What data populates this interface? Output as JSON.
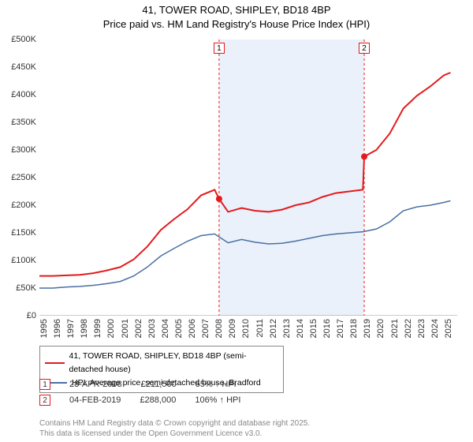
{
  "title_line1": "41, TOWER ROAD, SHIPLEY, BD18 4BP",
  "title_line2": "Price paid vs. HM Land Registry's House Price Index (HPI)",
  "chart": {
    "type": "line",
    "x_min": 1995,
    "x_max": 2026,
    "y_min": 0,
    "y_max": 500000,
    "y_ticks": [
      0,
      50000,
      100000,
      150000,
      200000,
      250000,
      300000,
      350000,
      400000,
      450000,
      500000
    ],
    "y_tick_labels": [
      "£0",
      "£50K",
      "£100K",
      "£150K",
      "£200K",
      "£250K",
      "£300K",
      "£350K",
      "£400K",
      "£450K",
      "£500K"
    ],
    "x_ticks": [
      1995,
      1996,
      1997,
      1998,
      1999,
      2000,
      2001,
      2002,
      2003,
      2004,
      2005,
      2006,
      2007,
      2008,
      2009,
      2010,
      2011,
      2012,
      2013,
      2014,
      2015,
      2016,
      2017,
      2018,
      2019,
      2020,
      2021,
      2022,
      2023,
      2024,
      2025
    ],
    "background_color": "#ffffff",
    "shade_color": "#eaf1fa",
    "grid_color": "#cccccc",
    "shade_x_from": 2008.33,
    "shade_x_to": 2019.1,
    "series": [
      {
        "name": "property",
        "color": "#e41a1c",
        "width": 2,
        "points": [
          [
            1995,
            72000
          ],
          [
            1996,
            72000
          ],
          [
            1997,
            73000
          ],
          [
            1998,
            74000
          ],
          [
            1999,
            77000
          ],
          [
            2000,
            82000
          ],
          [
            2001,
            88000
          ],
          [
            2002,
            102000
          ],
          [
            2003,
            125000
          ],
          [
            2004,
            155000
          ],
          [
            2005,
            175000
          ],
          [
            2006,
            193000
          ],
          [
            2007,
            218000
          ],
          [
            2008,
            228000
          ],
          [
            2008.33,
            211500
          ],
          [
            2009,
            188000
          ],
          [
            2010,
            195000
          ],
          [
            2011,
            190000
          ],
          [
            2012,
            188000
          ],
          [
            2013,
            192000
          ],
          [
            2014,
            200000
          ],
          [
            2015,
            205000
          ],
          [
            2016,
            215000
          ],
          [
            2017,
            222000
          ],
          [
            2018,
            225000
          ],
          [
            2019,
            228000
          ],
          [
            2019.1,
            288000
          ],
          [
            2020,
            300000
          ],
          [
            2021,
            330000
          ],
          [
            2022,
            375000
          ],
          [
            2023,
            398000
          ],
          [
            2024,
            415000
          ],
          [
            2025,
            435000
          ],
          [
            2025.5,
            440000
          ]
        ]
      },
      {
        "name": "hpi",
        "color": "#4a6fa5",
        "width": 1.5,
        "points": [
          [
            1995,
            50000
          ],
          [
            1996,
            50000
          ],
          [
            1997,
            52000
          ],
          [
            1998,
            53000
          ],
          [
            1999,
            55000
          ],
          [
            2000,
            58000
          ],
          [
            2001,
            62000
          ],
          [
            2002,
            72000
          ],
          [
            2003,
            88000
          ],
          [
            2004,
            108000
          ],
          [
            2005,
            122000
          ],
          [
            2006,
            135000
          ],
          [
            2007,
            145000
          ],
          [
            2008,
            148000
          ],
          [
            2009,
            132000
          ],
          [
            2010,
            138000
          ],
          [
            2011,
            133000
          ],
          [
            2012,
            130000
          ],
          [
            2013,
            131000
          ],
          [
            2014,
            135000
          ],
          [
            2015,
            140000
          ],
          [
            2016,
            145000
          ],
          [
            2017,
            148000
          ],
          [
            2018,
            150000
          ],
          [
            2019,
            152000
          ],
          [
            2020,
            157000
          ],
          [
            2021,
            170000
          ],
          [
            2022,
            190000
          ],
          [
            2023,
            197000
          ],
          [
            2024,
            200000
          ],
          [
            2025,
            205000
          ],
          [
            2025.5,
            208000
          ]
        ]
      }
    ],
    "event_markers": [
      {
        "num": "1",
        "x": 2008.33,
        "y": 211500
      },
      {
        "num": "2",
        "x": 2019.1,
        "y": 288000
      }
    ]
  },
  "legend": {
    "series1": "41, TOWER ROAD, SHIPLEY, BD18 4BP (semi-detached house)",
    "series2": "HPI: Average price, semi-detached house, Bradford",
    "color1": "#e41a1c",
    "color2": "#4a6fa5"
  },
  "events": [
    {
      "num": "1",
      "date": "28-APR-2008",
      "price": "£211,500",
      "delta": "55% ↑ HPI"
    },
    {
      "num": "2",
      "date": "04-FEB-2019",
      "price": "£288,000",
      "delta": "106% ↑ HPI"
    }
  ],
  "footer_line1": "Contains HM Land Registry data © Crown copyright and database right 2025.",
  "footer_line2": "This data is licensed under the Open Government Licence v3.0."
}
